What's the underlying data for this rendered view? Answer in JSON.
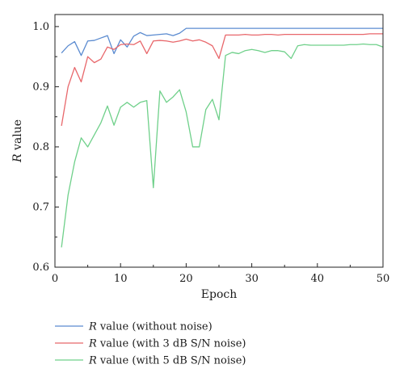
{
  "chart_data": {
    "type": "line",
    "xlabel": "Epoch",
    "ylabel": {
      "italic": "R",
      "rest": " value"
    },
    "xlim": [
      0,
      50
    ],
    "ylim": [
      0.6,
      1.02
    ],
    "xticks": [
      0,
      10,
      20,
      30,
      40,
      50
    ],
    "yticks": [
      0.6,
      0.7,
      0.8,
      0.9,
      1.0
    ],
    "ytick_labels": [
      "0.6",
      "0.7",
      "0.8",
      "0.9",
      "1.0"
    ],
    "grid": false,
    "legend_position": "bottom-left, below plot",
    "series": [
      {
        "name": "R value (without noise)",
        "name_italic": "R",
        "name_rest": " value (without noise)",
        "color": "#5b8bd0",
        "x": [
          1,
          2,
          3,
          4,
          5,
          6,
          7,
          8,
          9,
          10,
          11,
          12,
          13,
          14,
          15,
          16,
          17,
          18,
          19,
          20,
          21,
          22,
          23,
          24,
          25,
          26,
          27,
          28,
          29,
          30,
          31,
          32,
          33,
          34,
          35,
          36,
          37,
          38,
          39,
          40,
          41,
          42,
          43,
          44,
          45,
          46,
          47,
          48,
          49,
          50
        ],
        "values": [
          0.956,
          0.968,
          0.975,
          0.952,
          0.976,
          0.977,
          0.981,
          0.985,
          0.955,
          0.978,
          0.966,
          0.984,
          0.99,
          0.985,
          0.986,
          0.987,
          0.988,
          0.985,
          0.989,
          0.997,
          0.997,
          0.997,
          0.997,
          0.997,
          0.997,
          0.997,
          0.997,
          0.997,
          0.997,
          0.997,
          0.997,
          0.997,
          0.997,
          0.997,
          0.997,
          0.997,
          0.997,
          0.997,
          0.997,
          0.997,
          0.997,
          0.997,
          0.997,
          0.997,
          0.997,
          0.997,
          0.997,
          0.997,
          0.997,
          0.997
        ]
      },
      {
        "name": "R value (with 3 dB S/N noise)",
        "name_italic": "R",
        "name_rest": " value (with 3 dB S/N noise)",
        "color": "#e8676b",
        "x": [
          1,
          2,
          3,
          4,
          5,
          6,
          7,
          8,
          9,
          10,
          11,
          12,
          13,
          14,
          15,
          16,
          17,
          18,
          19,
          20,
          21,
          22,
          23,
          24,
          25,
          26,
          27,
          28,
          29,
          30,
          31,
          32,
          33,
          34,
          35,
          36,
          37,
          38,
          39,
          40,
          41,
          42,
          43,
          44,
          45,
          46,
          47,
          48,
          49,
          50
        ],
        "values": [
          0.835,
          0.9,
          0.932,
          0.908,
          0.95,
          0.94,
          0.946,
          0.966,
          0.962,
          0.97,
          0.971,
          0.97,
          0.976,
          0.955,
          0.976,
          0.977,
          0.976,
          0.974,
          0.976,
          0.979,
          0.976,
          0.978,
          0.974,
          0.968,
          0.947,
          0.986,
          0.986,
          0.986,
          0.987,
          0.986,
          0.986,
          0.987,
          0.987,
          0.986,
          0.987,
          0.987,
          0.987,
          0.987,
          0.987,
          0.987,
          0.987,
          0.987,
          0.987,
          0.987,
          0.987,
          0.987,
          0.987,
          0.988,
          0.988,
          0.988
        ]
      },
      {
        "name": "R value (with 5 dB S/N noise)",
        "name_italic": "R",
        "name_rest": " value (with 5 dB S/N noise)",
        "color": "#6fd08a",
        "x": [
          1,
          2,
          3,
          4,
          5,
          6,
          7,
          8,
          9,
          10,
          11,
          12,
          13,
          14,
          15,
          16,
          17,
          18,
          19,
          20,
          21,
          22,
          23,
          24,
          25,
          26,
          27,
          28,
          29,
          30,
          31,
          32,
          33,
          34,
          35,
          36,
          37,
          38,
          39,
          40,
          41,
          42,
          43,
          44,
          45,
          46,
          47,
          48,
          49,
          50
        ],
        "values": [
          0.633,
          0.72,
          0.775,
          0.815,
          0.8,
          0.82,
          0.84,
          0.868,
          0.836,
          0.866,
          0.874,
          0.866,
          0.874,
          0.877,
          0.732,
          0.893,
          0.874,
          0.883,
          0.895,
          0.858,
          0.8,
          0.8,
          0.862,
          0.879,
          0.845,
          0.952,
          0.957,
          0.955,
          0.96,
          0.962,
          0.96,
          0.957,
          0.96,
          0.96,
          0.958,
          0.947,
          0.968,
          0.97,
          0.969,
          0.969,
          0.969,
          0.969,
          0.969,
          0.969,
          0.97,
          0.97,
          0.971,
          0.97,
          0.97,
          0.966
        ]
      }
    ]
  }
}
